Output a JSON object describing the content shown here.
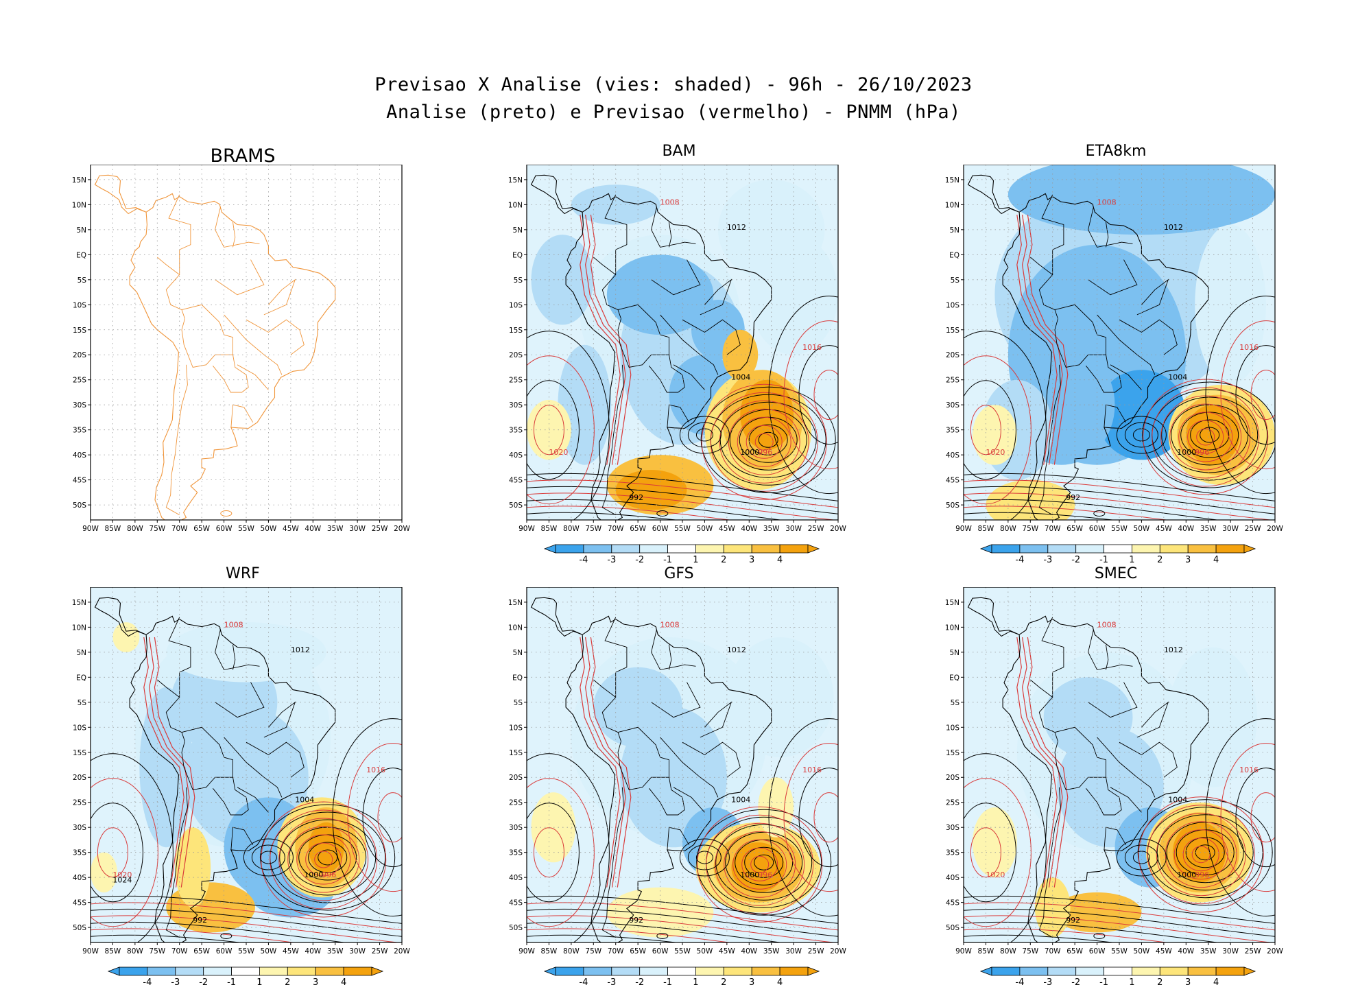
{
  "title_line1": "Previsao X Analise (vies: shaded) - 96h - 26/10/2023",
  "title_line2": "Analise (preto) e Previsao (vermelho) - PNMM (hPa)",
  "lat_ticks": [
    "15N",
    "10N",
    "5N",
    "EQ",
    "5S",
    "10S",
    "15S",
    "20S",
    "25S",
    "30S",
    "35S",
    "40S",
    "45S",
    "50S"
  ],
  "lon_ticks": [
    "90W",
    "85W",
    "80W",
    "75W",
    "70W",
    "65W",
    "60W",
    "55W",
    "50W",
    "45W",
    "40W",
    "35W",
    "30W",
    "25W",
    "20W"
  ],
  "colorbar_labels": [
    "-4",
    "-3",
    "-2",
    "-1",
    "1",
    "2",
    "3",
    "4"
  ],
  "colors": {
    "neg4": "#3ba3ec",
    "neg3": "#7cc0f0",
    "neg2": "#b3dcf6",
    "neg1": "#d9f1fb",
    "zero": "#ffffff",
    "pos1": "#fdf5b0",
    "pos2": "#fde57a",
    "pos3": "#f9c040",
    "pos4": "#f4a20e",
    "analysis": "#000000",
    "forecast": "#d93a3a",
    "brams_coast": "#f0953a"
  },
  "panels": [
    {
      "id": "brams",
      "label": "BRAMS",
      "labels": []
    },
    {
      "id": "bam",
      "label": "BAM",
      "labels": [
        "1012",
        "1008",
        "1004",
        "1016",
        "1000",
        "996",
        "992",
        "1020"
      ]
    },
    {
      "id": "eta8km",
      "label": "ETA8km",
      "labels": [
        "1012",
        "1008",
        "1004",
        "1016",
        "1000",
        "996",
        "992",
        "1020"
      ]
    },
    {
      "id": "wrf",
      "label": "WRF",
      "labels": [
        "1012",
        "1008",
        "1004",
        "1016",
        "1000",
        "996",
        "992",
        "1020",
        "1024"
      ]
    },
    {
      "id": "gfs",
      "label": "GFS",
      "labels": [
        "1012",
        "1008",
        "1004",
        "1016",
        "1000",
        "996",
        "992"
      ]
    },
    {
      "id": "smec",
      "label": "SMEC",
      "labels": [
        "1012",
        "1008",
        "1004",
        "1016",
        "1000",
        "996",
        "992",
        "1020"
      ]
    }
  ]
}
